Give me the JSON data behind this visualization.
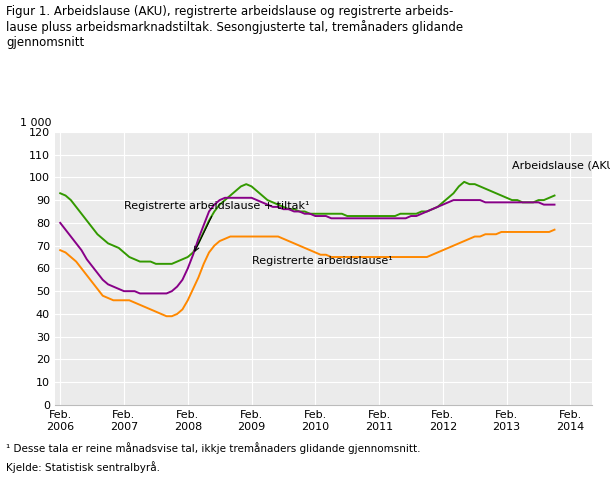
{
  "title_line1": "Figur 1. Arbeidslause (AKU), registrerte arbeidslause og registrerte arbeids-",
  "title_line2": "lause pluss arbeidsmarknadstiltak. Sesongjusterte tal, tremånaders glidande",
  "title_line3": "gjennomsnitt",
  "footnote": "¹ Desse tala er reine månadsvise tal, ikkje tremånaders glidande gjennomsnitt.",
  "source": "Kjelde: Statistisk sentralbyrå.",
  "ylabel_left": "1 000",
  "ylim": [
    0,
    120
  ],
  "yticks": [
    0,
    10,
    20,
    30,
    40,
    50,
    60,
    70,
    80,
    90,
    100,
    110,
    120
  ],
  "xtick_labels": [
    "Feb.\n2006",
    "Feb.\n2007",
    "Feb.\n2008",
    "Feb.\n2009",
    "Feb.\n2010",
    "Feb.\n2011",
    "Feb.\n2012",
    "Feb.\n2013",
    "Feb.\n2014"
  ],
  "color_aku": "#339900",
  "color_reg": "#FF8800",
  "color_tiltak": "#880088",
  "label_aku": "Arbeidslause (AKU)",
  "label_reg": "Registrerte arbeidslause¹",
  "label_tiltak": "Registrerte arbeidslause + tiltak¹",
  "aku": [
    93,
    92,
    90,
    87,
    84,
    81,
    78,
    75,
    73,
    71,
    70,
    69,
    67,
    65,
    64,
    63,
    63,
    63,
    62,
    62,
    62,
    62,
    63,
    64,
    65,
    67,
    71,
    76,
    81,
    85,
    88,
    90,
    92,
    94,
    96,
    97,
    96,
    94,
    92,
    90,
    89,
    88,
    87,
    86,
    86,
    85,
    85,
    84,
    84,
    84,
    84,
    84,
    84,
    84,
    83,
    83,
    83,
    83,
    83,
    83,
    83,
    83,
    83,
    83,
    84,
    84,
    84,
    84,
    85,
    85,
    86,
    87,
    89,
    91,
    93,
    96,
    98,
    97,
    97,
    96,
    95,
    94,
    93,
    92,
    91,
    90,
    90,
    89,
    89,
    89,
    90,
    90,
    91,
    92
  ],
  "reg": [
    68,
    67,
    65,
    63,
    60,
    57,
    54,
    51,
    48,
    47,
    46,
    46,
    46,
    46,
    45,
    44,
    43,
    42,
    41,
    40,
    39,
    39,
    40,
    42,
    46,
    51,
    56,
    62,
    67,
    70,
    72,
    73,
    74,
    74,
    74,
    74,
    74,
    74,
    74,
    74,
    74,
    74,
    73,
    72,
    71,
    70,
    69,
    68,
    67,
    66,
    66,
    65,
    65,
    65,
    65,
    65,
    65,
    65,
    65,
    65,
    65,
    65,
    65,
    65,
    65,
    65,
    65,
    65,
    65,
    65,
    66,
    67,
    68,
    69,
    70,
    71,
    72,
    73,
    74,
    74,
    75,
    75,
    75,
    76,
    76,
    76,
    76,
    76,
    76,
    76,
    76,
    76,
    76,
    77
  ],
  "tiltak": [
    80,
    77,
    74,
    71,
    68,
    64,
    61,
    58,
    55,
    53,
    52,
    51,
    50,
    50,
    50,
    49,
    49,
    49,
    49,
    49,
    49,
    50,
    52,
    55,
    60,
    66,
    73,
    79,
    85,
    88,
    90,
    91,
    91,
    91,
    91,
    91,
    91,
    90,
    89,
    88,
    87,
    87,
    86,
    86,
    85,
    85,
    84,
    84,
    83,
    83,
    83,
    82,
    82,
    82,
    82,
    82,
    82,
    82,
    82,
    82,
    82,
    82,
    82,
    82,
    82,
    82,
    83,
    83,
    84,
    85,
    86,
    87,
    88,
    89,
    90,
    90,
    90,
    90,
    90,
    90,
    89,
    89,
    89,
    89,
    89,
    89,
    89,
    89,
    89,
    89,
    89,
    88,
    88,
    88
  ],
  "n_points": 94,
  "feb_tick_positions": [
    0,
    12,
    24,
    36,
    48,
    60,
    72,
    84,
    96
  ]
}
